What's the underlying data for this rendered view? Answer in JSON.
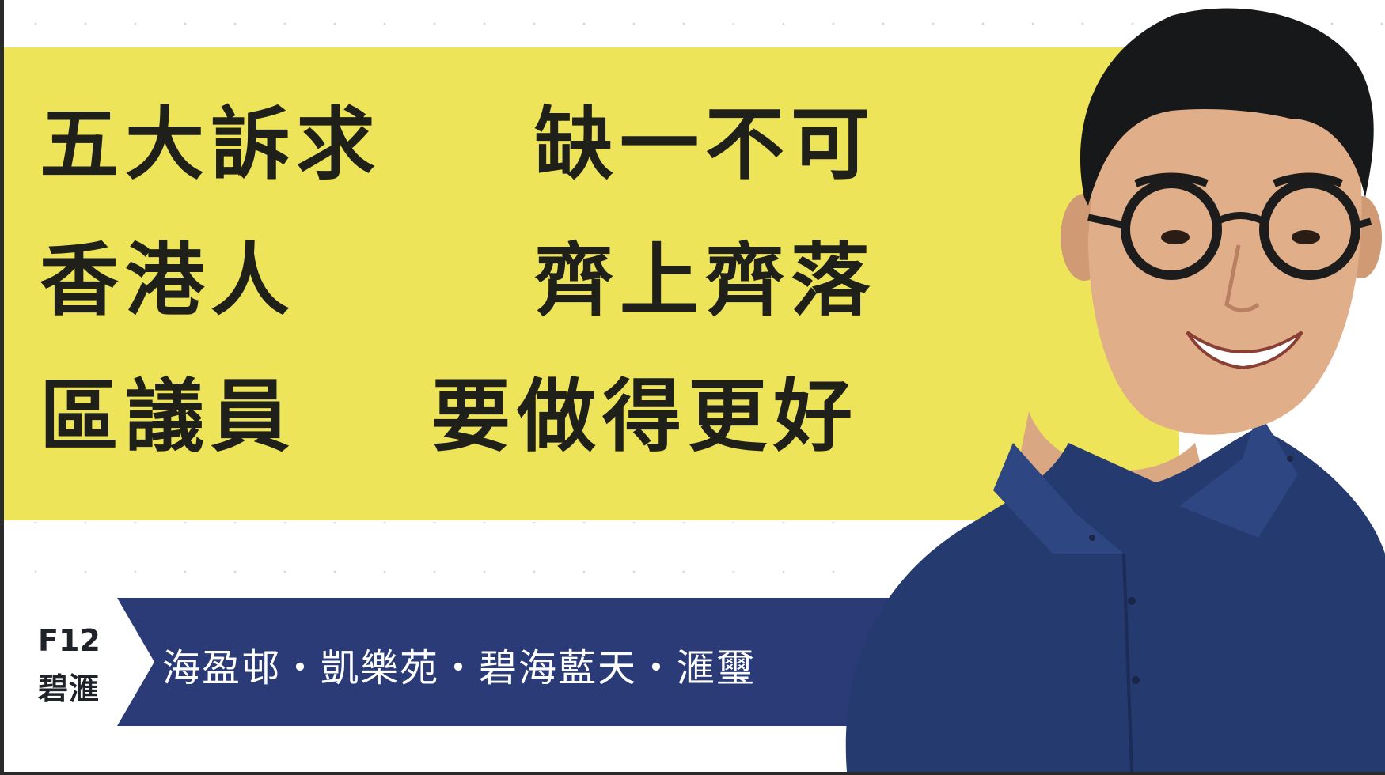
{
  "slogans": {
    "row1_left": "五大訴求",
    "row1_right": "缺一不可",
    "row2_left": "香港人",
    "row2_right": "齊上齊落",
    "row3_left": "區議員",
    "row3_right": "要做得更好"
  },
  "constituency": {
    "code": "F12",
    "name": "碧滙"
  },
  "estates": {
    "text": "海盈邨・凱樂苑・碧海藍天・滙璽"
  },
  "colors": {
    "yellow": "#eee45a",
    "navy": "#2b3b78",
    "text_dark": "#1f2019",
    "shirt": "#253a6e"
  },
  "portrait": {
    "subject": "smiling man with round glasses in navy shirt"
  }
}
